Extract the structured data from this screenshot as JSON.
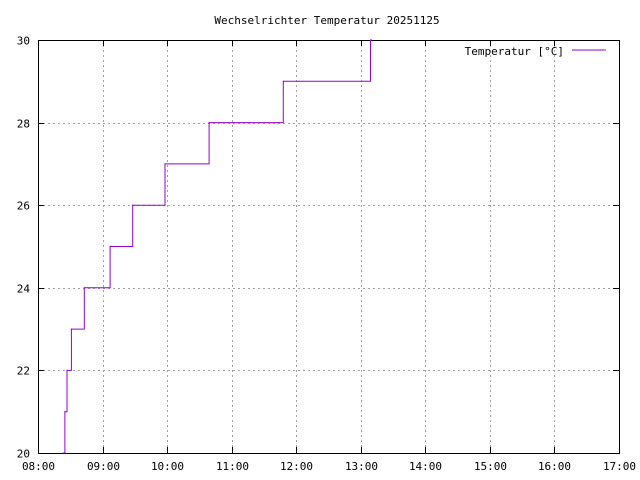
{
  "chart_data": {
    "type": "line",
    "title": "Wechselrichter Temperatur 20251125",
    "xlabel": "",
    "ylabel": "",
    "x_ticks": [
      "08:00",
      "09:00",
      "10:00",
      "11:00",
      "12:00",
      "13:00",
      "14:00",
      "15:00",
      "16:00",
      "17:00"
    ],
    "y_ticks": [
      20,
      22,
      24,
      26,
      28,
      30
    ],
    "xlim": [
      "08:00",
      "17:00"
    ],
    "ylim": [
      20,
      30
    ],
    "grid": true,
    "legend_position": "top-right",
    "series": [
      {
        "name": "Temperatur [°C]",
        "color": "#9400d3",
        "step": true,
        "points": [
          {
            "x": "08:24",
            "y": 20
          },
          {
            "x": "08:25",
            "y": 21
          },
          {
            "x": "08:27",
            "y": 22
          },
          {
            "x": "08:31",
            "y": 23
          },
          {
            "x": "08:43",
            "y": 24
          },
          {
            "x": "09:07",
            "y": 25
          },
          {
            "x": "09:28",
            "y": 26
          },
          {
            "x": "09:58",
            "y": 27
          },
          {
            "x": "10:39",
            "y": 28
          },
          {
            "x": "11:48",
            "y": 29
          },
          {
            "x": "13:09",
            "y": 30
          },
          {
            "x": "13:10",
            "y": 30
          }
        ]
      }
    ]
  }
}
